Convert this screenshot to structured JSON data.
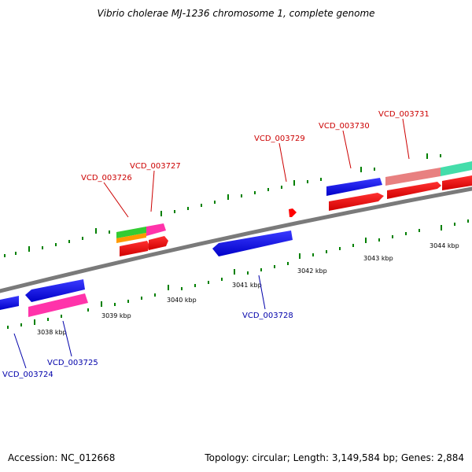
{
  "title": "Vibrio cholerae MJ-1236 chromosome 1, complete genome",
  "footer": {
    "accession": "Accession: NC_012668",
    "topology": "Topology: circular; Length: 3,149,584 bp; Genes: 2,884"
  },
  "colors": {
    "forward_gene": "#ff0000",
    "reverse_gene": "#0000ff",
    "tick": "#008000",
    "axis": "#808080",
    "forward_label": "#cc0000",
    "reverse_label": "#0000aa"
  },
  "kbp_ticks": [
    "3038 kbp",
    "3039 kbp",
    "3040 kbp",
    "3041 kbp",
    "3042 kbp",
    "3043 kbp",
    "3044 kbp"
  ],
  "gene_labels": {
    "forward": [
      "VCD_003726",
      "VCD_003727",
      "VCD_003729",
      "VCD_003730",
      "VCD_003731"
    ],
    "reverse": [
      "VCD_003724",
      "VCD_003725",
      "VCD_003728"
    ]
  }
}
